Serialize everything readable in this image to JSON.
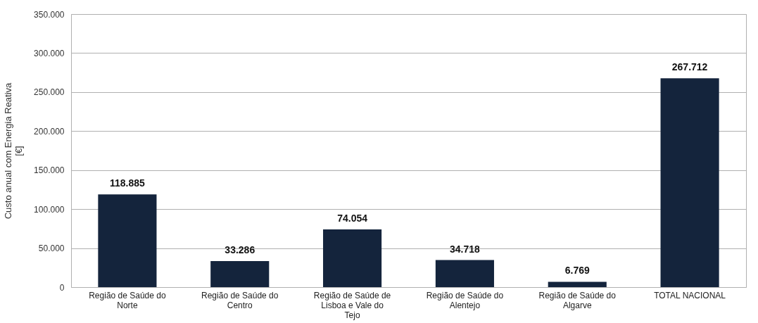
{
  "chart_data": {
    "type": "bar",
    "ylabel": "Custo anual com Energia Reativa [€]",
    "categories": [
      "Região de Saúde do Norte",
      "Região de Saúde do Centro",
      "Região de Saúde de Lisboa e Vale do Tejo",
      "Região de Saúde do Alentejo",
      "Região de Saúde do Algarve",
      "TOTAL NACIONAL"
    ],
    "values": [
      118885,
      33286,
      74054,
      34718,
      6769,
      267712
    ],
    "value_labels": [
      "118.885",
      "33.286",
      "74.054",
      "34.718",
      "6.769",
      "267.712"
    ],
    "color": "#14243c",
    "ylim": [
      0,
      350000
    ],
    "yticks": [
      {
        "value": 0,
        "label": "0"
      },
      {
        "value": 50000,
        "label": "50.000"
      },
      {
        "value": 100000,
        "label": "100.000"
      },
      {
        "value": 150000,
        "label": "150.000"
      },
      {
        "value": 200000,
        "label": "200.000"
      },
      {
        "value": 250000,
        "label": "250.000"
      },
      {
        "value": 300000,
        "label": "300.000"
      },
      {
        "value": 350000,
        "label": "350.000"
      }
    ],
    "grid": "y"
  }
}
